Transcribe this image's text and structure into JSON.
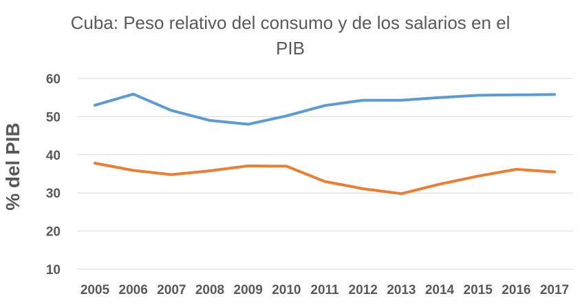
{
  "chart_data": {
    "type": "line",
    "title_line1": "Cuba: Peso relativo del consumo y de los salarios en el",
    "title_line2": "PIB",
    "xlabel": "",
    "ylabel": "% del PIB",
    "categories": [
      "2005",
      "2006",
      "2007",
      "2008",
      "2009",
      "2010",
      "2011",
      "2012",
      "2013",
      "2014",
      "2015",
      "2016",
      "2017"
    ],
    "ylim": [
      10,
      60
    ],
    "yticks": [
      10,
      20,
      30,
      40,
      50,
      60
    ],
    "grid": true,
    "legend": "none",
    "series": [
      {
        "values": [
          53.0,
          55.9,
          51.6,
          49.0,
          48.0,
          50.2,
          52.9,
          54.3,
          54.3,
          55.0,
          55.6,
          55.7,
          55.8
        ],
        "color": "#5b9bd5"
      },
      {
        "values": [
          37.8,
          35.9,
          34.8,
          35.8,
          37.1,
          37.0,
          33.0,
          31.1,
          29.8,
          32.3,
          34.4,
          36.2,
          35.5
        ],
        "color": "#ed7d31"
      }
    ]
  }
}
